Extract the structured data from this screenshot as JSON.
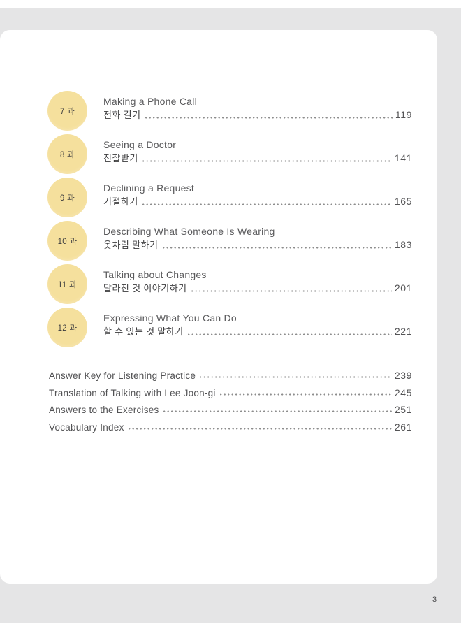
{
  "page": {
    "folio": "3"
  },
  "colors": {
    "backdrop_gray": "#e5e5e6",
    "sheet_white": "#ffffff",
    "lesson_circle_yellow": "#f5e09d",
    "title_gray": "#59595b",
    "leader_dot_gray": "#8d8d8d"
  },
  "toc": {
    "entries": [
      {
        "lesson": "7 과",
        "title": "Making a Phone Call",
        "subtitle": "전화 걸기",
        "page": "119"
      },
      {
        "lesson": "8 과",
        "title": "Seeing a Doctor",
        "subtitle": "진찰받기",
        "page": "141"
      },
      {
        "lesson": "9 과",
        "title": "Declining a Request",
        "subtitle": "거절하기",
        "page": "165"
      },
      {
        "lesson": "10 과",
        "title": "Describing What Someone Is Wearing",
        "subtitle": "옷차림 말하기",
        "page": "183"
      },
      {
        "lesson": "11 과",
        "title": "Talking about Changes",
        "subtitle": "달라진 것 이야기하기",
        "page": "201"
      },
      {
        "lesson": "12 과",
        "title": "Expressing What You Can Do",
        "subtitle": "할 수 있는 것 말하기",
        "page": "221"
      }
    ],
    "backmatter": [
      {
        "title": "Answer Key for Listening Practice",
        "page": "239"
      },
      {
        "title": "Translation of Talking with Lee Joon-gi",
        "page": "245"
      },
      {
        "title": "Answers to the Exercises",
        "page": "251"
      },
      {
        "title": "Vocabulary Index",
        "page": "261"
      }
    ]
  }
}
